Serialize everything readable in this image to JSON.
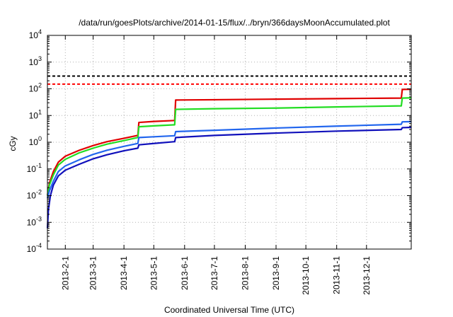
{
  "chart_data": {
    "type": "line",
    "title": "/data/run/goesPlots/archive/2014-01-15/flux/../bryn/366daysMoonAccumulated.plot",
    "xlabel": "Coordinated Universal Time (UTC)",
    "ylabel": "cGy",
    "y_scale": "log",
    "ylim": [
      0.0001,
      10000
    ],
    "y_ticks": [
      {
        "base": "10",
        "exp": "-4",
        "value": 0.0001
      },
      {
        "base": "10",
        "exp": "-3",
        "value": 0.001
      },
      {
        "base": "10",
        "exp": "-2",
        "value": 0.01
      },
      {
        "base": "10",
        "exp": "-1",
        "value": 0.1
      },
      {
        "base": "10",
        "exp": "0",
        "value": 1
      },
      {
        "base": "10",
        "exp": "1",
        "value": 10
      },
      {
        "base": "10",
        "exp": "2",
        "value": 100
      },
      {
        "base": "10",
        "exp": "3",
        "value": 1000
      },
      {
        "base": "10",
        "exp": "4",
        "value": 10000
      }
    ],
    "xlim": [
      "2013-01-14",
      "2014-01-15"
    ],
    "x_ticks": [
      "2013-2-1",
      "2013-3-1",
      "2013-4-1",
      "2013-5-1",
      "2013-6-1",
      "2013-7-1",
      "2013-8-1",
      "2013-9-1",
      "2013-10-1",
      "2013-11-1",
      "2013-12-1"
    ],
    "x_tick_dates": [
      "2013-02-01",
      "2013-03-01",
      "2013-04-01",
      "2013-05-01",
      "2013-06-01",
      "2013-07-01",
      "2013-08-01",
      "2013-09-01",
      "2013-10-01",
      "2013-11-01",
      "2013-12-01"
    ],
    "grid": true,
    "reference_lines": [
      {
        "value": 300,
        "color": "#000000",
        "style": "dashed"
      },
      {
        "value": 150,
        "color": "#ff0000",
        "style": "dashed"
      }
    ],
    "series": [
      {
        "color": "#e00000",
        "points": [
          [
            "2013-01-14",
            0.01
          ],
          [
            "2013-01-16",
            0.03
          ],
          [
            "2013-01-20",
            0.08
          ],
          [
            "2013-01-25",
            0.18
          ],
          [
            "2013-02-01",
            0.3
          ],
          [
            "2013-02-15",
            0.5
          ],
          [
            "2013-03-01",
            0.75
          ],
          [
            "2013-03-15",
            1.05
          ],
          [
            "2013-04-01",
            1.4
          ],
          [
            "2013-04-15",
            1.8
          ],
          [
            "2013-04-16",
            5.5
          ],
          [
            "2013-05-01",
            6.0
          ],
          [
            "2013-05-22",
            6.5
          ],
          [
            "2013-05-23",
            38
          ],
          [
            "2013-07-01",
            39
          ],
          [
            "2013-09-01",
            41
          ],
          [
            "2013-11-01",
            43
          ],
          [
            "2014-01-05",
            45
          ],
          [
            "2014-01-06",
            95
          ],
          [
            "2014-01-15",
            96
          ]
        ]
      },
      {
        "color": "#22dd22",
        "points": [
          [
            "2013-01-14",
            0.01
          ],
          [
            "2013-01-16",
            0.025
          ],
          [
            "2013-01-20",
            0.06
          ],
          [
            "2013-01-25",
            0.14
          ],
          [
            "2013-02-01",
            0.23
          ],
          [
            "2013-02-15",
            0.4
          ],
          [
            "2013-03-01",
            0.6
          ],
          [
            "2013-03-15",
            0.85
          ],
          [
            "2013-04-01",
            1.15
          ],
          [
            "2013-04-15",
            1.5
          ],
          [
            "2013-04-16",
            3.8
          ],
          [
            "2013-05-01",
            4.1
          ],
          [
            "2013-05-22",
            4.5
          ],
          [
            "2013-05-23",
            17
          ],
          [
            "2013-07-01",
            18
          ],
          [
            "2013-09-01",
            19
          ],
          [
            "2013-11-01",
            21
          ],
          [
            "2014-01-05",
            23
          ],
          [
            "2014-01-06",
            45
          ],
          [
            "2014-01-15",
            46
          ]
        ]
      },
      {
        "color": "#2266ee",
        "points": [
          [
            "2013-01-14",
            0.008
          ],
          [
            "2013-01-16",
            0.015
          ],
          [
            "2013-01-20",
            0.035
          ],
          [
            "2013-01-25",
            0.08
          ],
          [
            "2013-02-01",
            0.13
          ],
          [
            "2013-02-15",
            0.22
          ],
          [
            "2013-03-01",
            0.35
          ],
          [
            "2013-03-15",
            0.5
          ],
          [
            "2013-04-01",
            0.7
          ],
          [
            "2013-04-15",
            0.9
          ],
          [
            "2013-04-16",
            1.5
          ],
          [
            "2013-05-01",
            1.6
          ],
          [
            "2013-05-22",
            1.75
          ],
          [
            "2013-05-23",
            2.5
          ],
          [
            "2013-07-01",
            2.8
          ],
          [
            "2013-09-01",
            3.4
          ],
          [
            "2013-11-01",
            4.0
          ],
          [
            "2014-01-05",
            4.7
          ],
          [
            "2014-01-06",
            5.8
          ],
          [
            "2014-01-15",
            5.9
          ]
        ]
      },
      {
        "color": "#1010bb",
        "points": [
          [
            "2013-01-14",
            0.0006
          ],
          [
            "2013-01-15",
            0.003
          ],
          [
            "2013-01-17",
            0.01
          ],
          [
            "2013-01-20",
            0.025
          ],
          [
            "2013-01-25",
            0.055
          ],
          [
            "2013-02-01",
            0.09
          ],
          [
            "2013-02-15",
            0.15
          ],
          [
            "2013-03-01",
            0.24
          ],
          [
            "2013-03-15",
            0.34
          ],
          [
            "2013-04-01",
            0.48
          ],
          [
            "2013-04-15",
            0.6
          ],
          [
            "2013-04-16",
            0.8
          ],
          [
            "2013-05-01",
            0.9
          ],
          [
            "2013-05-22",
            1.05
          ],
          [
            "2013-05-23",
            1.5
          ],
          [
            "2013-07-01",
            1.8
          ],
          [
            "2013-09-01",
            2.2
          ],
          [
            "2013-11-01",
            2.6
          ],
          [
            "2014-01-05",
            3.0
          ],
          [
            "2014-01-06",
            3.5
          ],
          [
            "2014-01-15",
            3.6
          ]
        ]
      }
    ]
  }
}
